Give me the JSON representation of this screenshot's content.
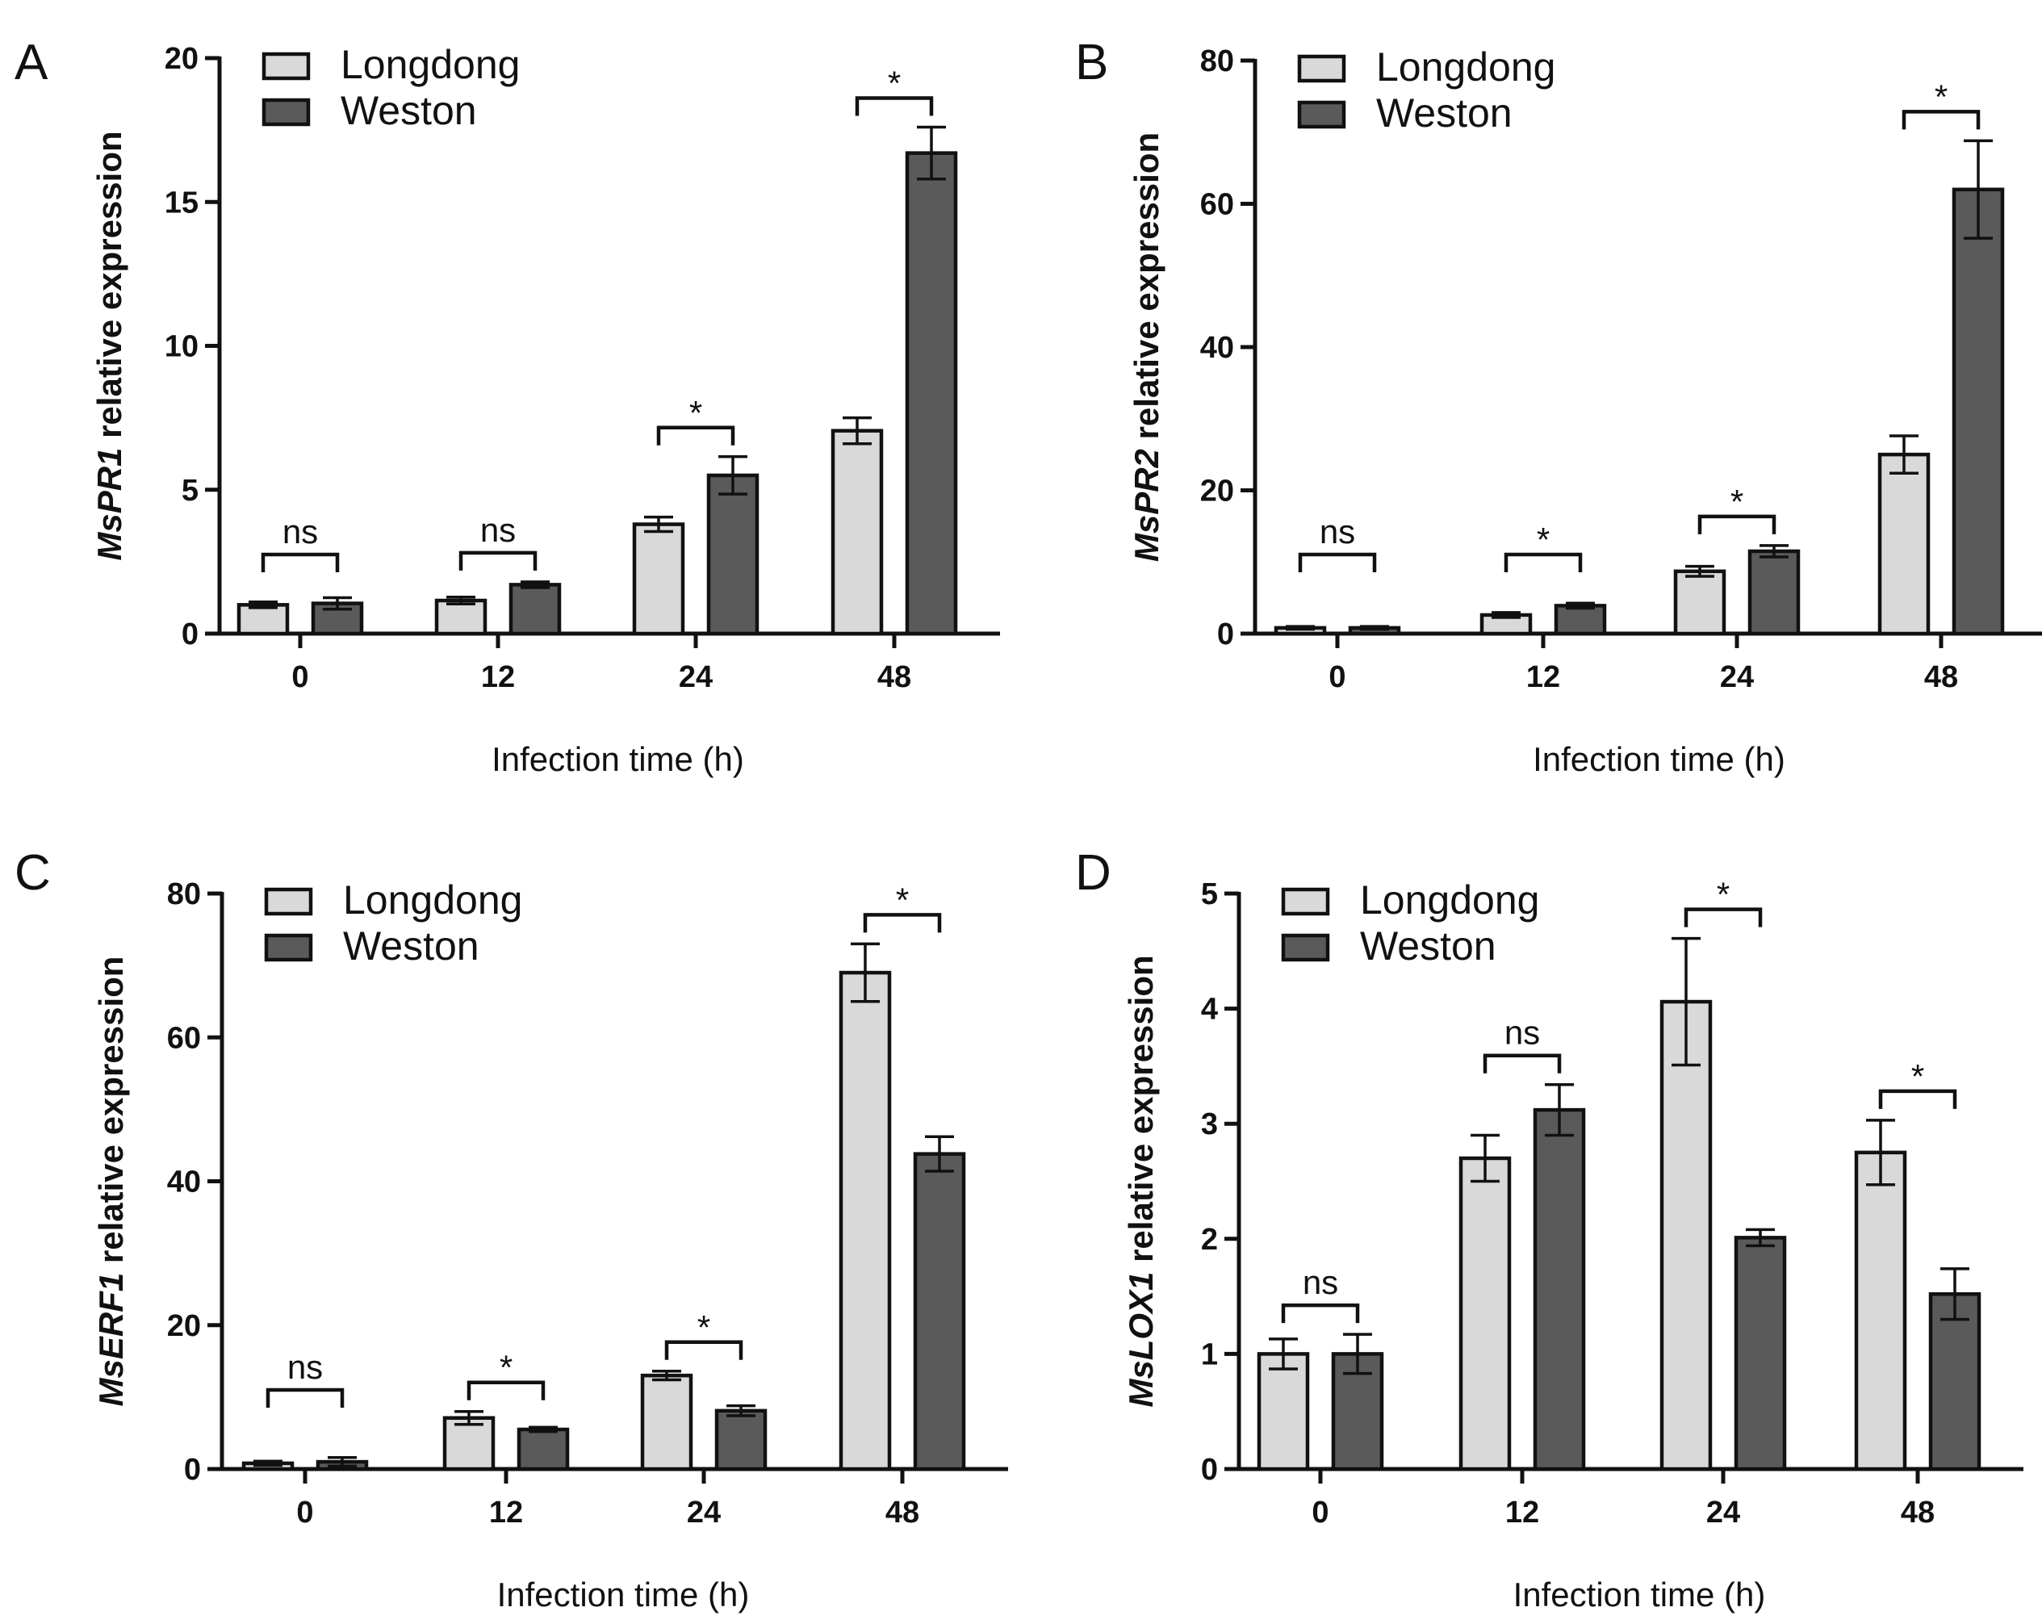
{
  "colors": {
    "longdong": "#d9d9d9",
    "weston": "#5a5a5a",
    "stroke": "#111111"
  },
  "chart_data": [
    {
      "panel": "A",
      "type": "bar",
      "gene": "MsPR1",
      "ylabel_suffix": " relative expression",
      "xlabel": "Infection time (h)",
      "categories": [
        "0",
        "12",
        "24",
        "48"
      ],
      "ylim": [
        0,
        20
      ],
      "yticks": [
        "0",
        "5",
        "10",
        "15",
        "20"
      ],
      "series": [
        {
          "name": "Longdong",
          "values": [
            1.0,
            1.15,
            3.8,
            7.05
          ],
          "errors": [
            0.1,
            0.12,
            0.25,
            0.45
          ]
        },
        {
          "name": "Weston",
          "values": [
            1.05,
            1.7,
            5.5,
            16.7
          ],
          "errors": [
            0.2,
            0.1,
            0.65,
            0.9
          ]
        }
      ],
      "significance": [
        "ns",
        "ns",
        "*",
        "*"
      ]
    },
    {
      "panel": "B",
      "type": "bar",
      "gene": "MsPR2",
      "ylabel_suffix": " relative expression",
      "xlabel": "Infection time (h)",
      "categories": [
        "0",
        "12",
        "24",
        "48"
      ],
      "ylim": [
        0,
        80
      ],
      "yticks": [
        "0",
        "20",
        "40",
        "60",
        "80"
      ],
      "series": [
        {
          "name": "Longdong",
          "values": [
            0.8,
            2.6,
            8.7,
            25.0
          ],
          "errors": [
            0.2,
            0.35,
            0.7,
            2.6
          ]
        },
        {
          "name": "Weston",
          "values": [
            0.8,
            3.9,
            11.5,
            62.0
          ],
          "errors": [
            0.2,
            0.35,
            0.8,
            6.8
          ]
        }
      ],
      "significance": [
        "ns",
        "*",
        "*",
        "*"
      ]
    },
    {
      "panel": "C",
      "type": "bar",
      "gene": "MsERF1",
      "ylabel_suffix": " relative expression",
      "xlabel": "Infection time (h)",
      "categories": [
        "0",
        "12",
        "24",
        "48"
      ],
      "ylim": [
        0,
        80
      ],
      "yticks": [
        "0",
        "20",
        "40",
        "60",
        "80"
      ],
      "series": [
        {
          "name": "Longdong",
          "values": [
            0.8,
            7.1,
            13.0,
            69.0
          ],
          "errors": [
            0.3,
            0.9,
            0.6,
            4.0
          ]
        },
        {
          "name": "Weston",
          "values": [
            1.0,
            5.5,
            8.1,
            43.8
          ],
          "errors": [
            0.6,
            0.3,
            0.7,
            2.4
          ]
        }
      ],
      "significance": [
        "ns",
        "*",
        "*",
        "*"
      ]
    },
    {
      "panel": "D",
      "type": "bar",
      "gene": "MsLOX1",
      "ylabel_suffix": " relative expression",
      "xlabel": "Infection time (h)",
      "categories": [
        "0",
        "12",
        "24",
        "48"
      ],
      "ylim": [
        0,
        5
      ],
      "yticks": [
        "0",
        "1",
        "2",
        "3",
        "4",
        "5"
      ],
      "series": [
        {
          "name": "Longdong",
          "values": [
            1.0,
            2.7,
            4.06,
            2.75
          ],
          "errors": [
            0.13,
            0.2,
            0.55,
            0.28
          ]
        },
        {
          "name": "Weston",
          "values": [
            1.0,
            3.12,
            2.01,
            1.52
          ],
          "errors": [
            0.17,
            0.22,
            0.07,
            0.22
          ]
        }
      ],
      "significance": [
        "ns",
        "ns",
        "*",
        "*"
      ]
    }
  ]
}
